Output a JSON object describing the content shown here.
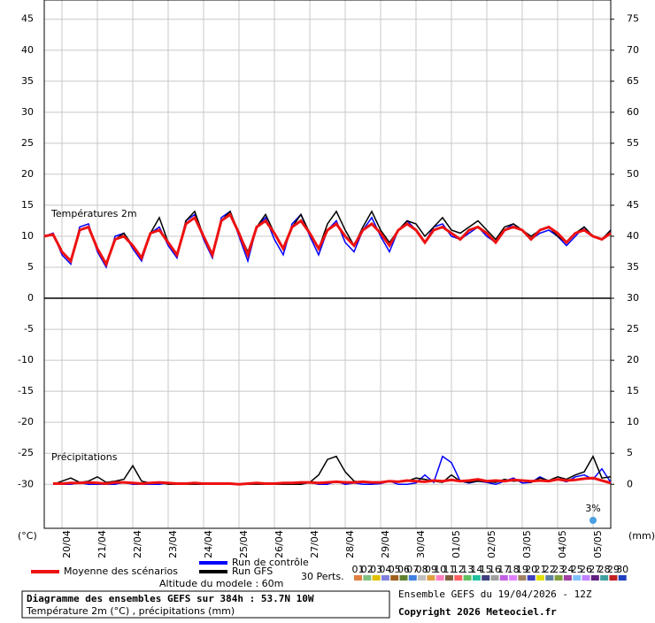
{
  "chart_data": {
    "type": "line",
    "title": "Diagramme des ensembles GEFS sur 384h : 53.7N 10W",
    "subtitle": "Température 2m (°C) , précipitations (mm)",
    "run_info": "Ensemble GEFS du 19/04/2026 - 12Z",
    "copyright": "Copyright 2026 Meteociel.fr",
    "altitude": "Altitude du modele : 60m",
    "temperature_label": "Températures 2m",
    "precipitation_label": "Précipitations",
    "y_label": "(°C)",
    "y2_label": "(mm)",
    "snow_annotation": "3%",
    "categories": [
      null,
      null,
      "20/04",
      null,
      null,
      null,
      "21/04",
      null,
      null,
      null,
      "22/04",
      null,
      null,
      null,
      "23/04",
      null,
      null,
      null,
      "24/04",
      null,
      null,
      null,
      "25/04",
      null,
      null,
      null,
      "26/04",
      null,
      null,
      null,
      "27/04",
      null,
      null,
      null,
      "28/04",
      null,
      null,
      null,
      "29/04",
      null,
      null,
      null,
      "30/04",
      null,
      null,
      null,
      "01/05",
      null,
      null,
      null,
      "02/05",
      null,
      null,
      null,
      "03/05",
      null,
      null,
      null,
      "04/05",
      null,
      null,
      null,
      "05/05",
      null,
      null
    ],
    "ylim": [
      -37.1,
      48.1
    ],
    "yticks": [
      -30,
      -25,
      -20,
      -15,
      -10,
      -5,
      0,
      5,
      10,
      15,
      20,
      25,
      30,
      35,
      40,
      45
    ],
    "y2lim": [
      -7.1,
      78.1
    ],
    "y2ticks": [
      0,
      5,
      10,
      15,
      20,
      25,
      30,
      35,
      40,
      45,
      50,
      55,
      60,
      65,
      70,
      75
    ],
    "grid": true,
    "series": [
      {
        "name": "Run de contrôle",
        "color": "#0000ff",
        "values": [
          10,
          10.5,
          7,
          5.5,
          11.5,
          12,
          7.5,
          5,
          10,
          10.5,
          8,
          6,
          10.5,
          11.5,
          8.5,
          6.5,
          12.5,
          13.5,
          9.5,
          6.5,
          13,
          14,
          10,
          6,
          11.5,
          13,
          9.5,
          7,
          12,
          13.5,
          10,
          7,
          11,
          12.5,
          9,
          7.5,
          11,
          13,
          10,
          7.5,
          11,
          12.5,
          11,
          9,
          11.5,
          12,
          10,
          9.5,
          10.5,
          11.5,
          10,
          9,
          11,
          12,
          11,
          9.5,
          10.5,
          11,
          10,
          8.5,
          10,
          11.5,
          10,
          9.5,
          11
        ],
        "precip_values": [
          null,
          0,
          0,
          0,
          0.2,
          0,
          0,
          0,
          0,
          0.3,
          0,
          0,
          0,
          0,
          0.2,
          0,
          0,
          0,
          0,
          0,
          0,
          0,
          0,
          0,
          0,
          0,
          0,
          0,
          0,
          0,
          0.3,
          0,
          0,
          0.5,
          0,
          0.2,
          0,
          0,
          0.1,
          0.5,
          0,
          0,
          0.2,
          1.5,
          0.3,
          4.5,
          3.5,
          0.5,
          0.2,
          0.5,
          0.3,
          0,
          0.5,
          1,
          0.2,
          0.3,
          1.2,
          0.5,
          0.8,
          0.4,
          1.2,
          1.5,
          0.8,
          2.5,
          0.3
        ]
      },
      {
        "name": "Run GFS",
        "color": "#000000",
        "values": [
          10,
          10.2,
          7.5,
          6,
          11,
          11.5,
          8,
          5.5,
          9.5,
          10.5,
          8.5,
          6.5,
          10.5,
          13,
          9,
          7,
          12.5,
          14,
          10,
          7,
          12.5,
          14,
          10.5,
          7.5,
          11.5,
          13.5,
          10.5,
          8,
          11.5,
          13.5,
          10.5,
          8,
          12,
          14,
          11,
          8.5,
          11.5,
          14,
          11,
          9,
          11,
          12.5,
          12,
          10,
          11.5,
          13,
          11,
          10.5,
          11.5,
          12.5,
          11,
          9.5,
          11.5,
          12,
          11,
          10,
          11,
          11.5,
          10,
          9,
          10.5,
          11.5,
          10,
          9.5,
          11
        ],
        "precip_values": [
          null,
          0,
          0.5,
          1,
          0.3,
          0.5,
          1.2,
          0.3,
          0.5,
          0.8,
          3,
          0.5,
          0.2,
          0.3,
          0,
          0,
          0,
          0,
          0,
          0,
          0,
          0,
          0,
          0,
          0,
          0,
          0,
          0,
          0,
          0,
          0.3,
          1.5,
          4,
          4.5,
          2,
          0.5,
          0.3,
          0.3,
          0.2,
          0.5,
          0.4,
          0.5,
          1,
          0.8,
          0.5,
          0.3,
          1.5,
          0.5,
          0.3,
          0.5,
          0.4,
          0.3,
          0.8,
          0.5,
          0.6,
          0.3,
          1,
          0.6,
          1.2,
          0.8,
          1.5,
          2,
          4.5,
          1,
          1.2
        ]
      },
      {
        "name": "Moyenne des scénarios",
        "color": "#ee1111",
        "values": [
          10,
          10.3,
          7.5,
          6,
          11,
          11.5,
          8,
          5.5,
          9.5,
          10,
          8.5,
          6.5,
          10.5,
          11,
          9,
          7,
          12,
          13,
          10,
          7,
          12.5,
          13.5,
          10.5,
          7,
          11.5,
          12.5,
          10.5,
          8,
          11.5,
          12.5,
          10.5,
          8,
          11,
          12,
          10,
          8.5,
          11,
          12,
          10.5,
          8.5,
          11,
          12,
          11,
          9,
          11,
          11.5,
          10.5,
          9.5,
          11,
          11.5,
          10.5,
          9,
          11,
          11.5,
          11,
          9.5,
          11,
          11.5,
          10.5,
          9,
          10.5,
          11,
          10,
          9.5,
          10.5
        ],
        "precip_values": [
          null,
          0.1,
          0.1,
          0.2,
          0.2,
          0.3,
          0.2,
          0.1,
          0.3,
          0.3,
          0.2,
          0.1,
          0.2,
          0.3,
          0.2,
          0.1,
          0.1,
          0.2,
          0.1,
          0.1,
          0.1,
          0.1,
          0,
          0.1,
          0.2,
          0.1,
          0.1,
          0.2,
          0.2,
          0.3,
          0.3,
          0.2,
          0.3,
          0.4,
          0.3,
          0.3,
          0.4,
          0.3,
          0.3,
          0.5,
          0.4,
          0.6,
          0.5,
          0.4,
          0.6,
          0.5,
          0.7,
          0.5,
          0.6,
          0.8,
          0.5,
          0.6,
          0.5,
          0.7,
          0.6,
          0.5,
          0.6,
          0.5,
          0.8,
          0.6,
          0.7,
          0.9,
          1.0,
          0.6,
          0.2
        ]
      }
    ],
    "perturbations": {
      "label": "30 Perts.",
      "members": [
        {
          "name": "01",
          "color": "#e08040"
        },
        {
          "name": "02",
          "color": "#80c080"
        },
        {
          "name": "03",
          "color": "#e0c000"
        },
        {
          "name": "04",
          "color": "#8080e0"
        },
        {
          "name": "05",
          "color": "#a06020"
        },
        {
          "name": "06",
          "color": "#608030"
        },
        {
          "name": "07",
          "color": "#4080e0"
        },
        {
          "name": "08",
          "color": "#c0c0c0"
        },
        {
          "name": "09",
          "color": "#e0a040"
        },
        {
          "name": "10",
          "color": "#ff80c0"
        },
        {
          "name": "11",
          "color": "#806040"
        },
        {
          "name": "12",
          "color": "#ff6060"
        },
        {
          "name": "13",
          "color": "#60c060"
        },
        {
          "name": "14",
          "color": "#20c0a0"
        },
        {
          "name": "15",
          "color": "#404080"
        },
        {
          "name": "16",
          "color": "#a0a0a0"
        },
        {
          "name": "17",
          "color": "#c060e0"
        },
        {
          "name": "18",
          "color": "#e080ff"
        },
        {
          "name": "19",
          "color": "#a08060"
        },
        {
          "name": "20",
          "color": "#4040c0"
        },
        {
          "name": "21",
          "color": "#e0e000"
        },
        {
          "name": "22",
          "color": "#6080a0"
        },
        {
          "name": "23",
          "color": "#80a040"
        },
        {
          "name": "24",
          "color": "#a040a0"
        },
        {
          "name": "25",
          "color": "#80c0ff"
        },
        {
          "name": "26",
          "color": "#c080ff"
        },
        {
          "name": "27",
          "color": "#602080"
        },
        {
          "name": "28",
          "color": "#40a0a0"
        },
        {
          "name": "29",
          "color": "#c02020"
        },
        {
          "name": "30",
          "color": "#2040c0"
        }
      ]
    }
  }
}
